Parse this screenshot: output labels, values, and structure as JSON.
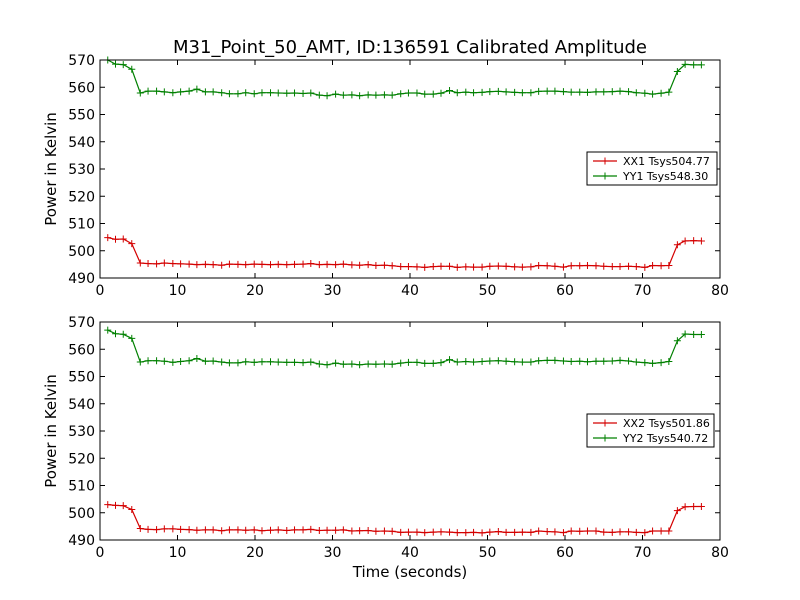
{
  "chart_data": {
    "type": "line",
    "title": "M31_Point_50_AMT, ID:136591 Calibrated Amplitude",
    "xlabel": "Time (seconds)",
    "ylabel": "Power in Kelvin",
    "xlim": [
      0,
      80
    ],
    "ylim": [
      490,
      570
    ],
    "x_ticks": [
      "0",
      "10",
      "20",
      "30",
      "40",
      "50",
      "60",
      "70",
      "80"
    ],
    "y_ticks": [
      "490",
      "500",
      "510",
      "520",
      "530",
      "540",
      "550",
      "560",
      "570"
    ],
    "grid": false,
    "legend_position": "center-right",
    "x": [
      1.0,
      2.0,
      3.0,
      4.1,
      5.2,
      6.2,
      7.3,
      8.3,
      9.4,
      10.4,
      11.5,
      12.5,
      13.6,
      14.6,
      15.7,
      16.7,
      17.8,
      18.8,
      19.9,
      20.9,
      22.0,
      23.0,
      24.1,
      25.1,
      26.2,
      27.2,
      28.3,
      29.3,
      30.4,
      31.4,
      32.5,
      33.5,
      34.6,
      35.6,
      36.7,
      37.7,
      38.8,
      39.8,
      40.9,
      41.9,
      43.0,
      44.0,
      45.1,
      46.1,
      47.2,
      48.2,
      49.3,
      50.3,
      51.4,
      52.4,
      53.5,
      54.5,
      55.6,
      56.6,
      57.7,
      58.7,
      59.8,
      60.8,
      61.9,
      62.9,
      64.0,
      65.0,
      66.1,
      67.1,
      68.2,
      69.2,
      70.3,
      71.3,
      72.4,
      73.4,
      74.5,
      75.5,
      76.6,
      77.6
    ],
    "panels": [
      {
        "series": [
          {
            "name": "XX1 Tsys504.77",
            "color": "#d40000",
            "values": [
              504.8,
              504.2,
              504.3,
              502.6,
              495.5,
              495.3,
              495.2,
              495.5,
              495.3,
              495.2,
              495.1,
              494.9,
              495.0,
              494.9,
              494.7,
              495.1,
              495.0,
              494.9,
              495.1,
              495.0,
              494.9,
              495.0,
              494.9,
              495.0,
              495.1,
              495.3,
              494.9,
              495.0,
              494.9,
              495.1,
              494.8,
              494.7,
              494.9,
              494.6,
              494.7,
              494.5,
              494.2,
              494.2,
              494.1,
              493.9,
              494.2,
              494.3,
              494.3,
              493.9,
              494.1,
              494.0,
              494.0,
              494.3,
              494.4,
              494.3,
              494.1,
              494.0,
              494.1,
              494.6,
              494.5,
              494.3,
              494.0,
              494.5,
              494.5,
              494.6,
              494.5,
              494.3,
              494.2,
              494.2,
              494.3,
              494.2,
              493.9,
              494.6,
              494.5,
              494.6,
              502.2,
              503.6,
              503.7,
              503.6
            ]
          },
          {
            "name": "YY1 Tsys548.30",
            "color": "#008000",
            "values": [
              570.0,
              568.5,
              568.3,
              566.6,
              557.9,
              558.6,
              558.6,
              558.3,
              558.0,
              558.3,
              558.6,
              559.3,
              558.3,
              558.3,
              558.0,
              557.6,
              557.6,
              558.0,
              557.6,
              558.0,
              558.0,
              557.9,
              557.8,
              557.9,
              557.7,
              557.9,
              557.1,
              556.9,
              557.5,
              557.1,
              557.2,
              556.9,
              557.2,
              557.1,
              557.2,
              557.1,
              557.6,
              557.9,
              557.9,
              557.5,
              557.5,
              557.8,
              558.8,
              558.0,
              558.2,
              558.0,
              558.1,
              558.4,
              558.5,
              558.3,
              558.1,
              558.0,
              558.0,
              558.5,
              558.6,
              558.6,
              558.4,
              558.2,
              558.2,
              558.1,
              558.3,
              558.3,
              558.4,
              558.6,
              558.4,
              558.0,
              557.8,
              557.5,
              557.8,
              558.2,
              565.8,
              568.4,
              568.2,
              568.2
            ]
          }
        ]
      },
      {
        "series": [
          {
            "name": "XX2 Tsys501.86",
            "color": "#d40000",
            "values": [
              503.0,
              502.7,
              502.6,
              501.2,
              494.2,
              493.9,
              493.8,
              494.1,
              494.1,
              493.9,
              493.8,
              493.6,
              493.7,
              493.7,
              493.4,
              493.7,
              493.7,
              493.6,
              493.7,
              493.4,
              493.6,
              493.7,
              493.5,
              493.7,
              493.7,
              493.9,
              493.5,
              493.6,
              493.6,
              493.7,
              493.3,
              493.4,
              493.5,
              493.2,
              493.3,
              493.2,
              492.8,
              492.9,
              492.9,
              492.7,
              492.9,
              493.0,
              492.9,
              492.7,
              492.7,
              492.8,
              492.6,
              492.9,
              493.1,
              492.8,
              492.8,
              492.9,
              492.8,
              493.3,
              493.1,
              493.0,
              492.7,
              493.3,
              493.2,
              493.3,
              493.3,
              492.9,
              492.8,
              493.0,
              493.0,
              492.8,
              492.7,
              493.3,
              493.3,
              493.3,
              500.8,
              502.2,
              502.3,
              502.3
            ]
          },
          {
            "name": "YY2 Tsys540.72",
            "color": "#008000",
            "values": [
              567.0,
              565.7,
              565.5,
              564.0,
              555.3,
              555.8,
              555.8,
              555.6,
              555.2,
              555.5,
              555.8,
              556.6,
              555.6,
              555.7,
              555.3,
              555.0,
              555.0,
              555.4,
              555.2,
              555.4,
              555.4,
              555.3,
              555.2,
              555.2,
              555.1,
              555.3,
              554.6,
              554.3,
              554.9,
              554.5,
              554.6,
              554.3,
              554.6,
              554.5,
              554.6,
              554.5,
              554.9,
              555.2,
              555.2,
              554.8,
              554.8,
              555.1,
              556.2,
              555.3,
              555.5,
              555.3,
              555.5,
              555.7,
              555.8,
              555.6,
              555.4,
              555.3,
              555.3,
              555.8,
              555.9,
              555.9,
              555.7,
              555.5,
              555.6,
              555.4,
              555.6,
              555.6,
              555.7,
              555.9,
              555.7,
              555.3,
              555.1,
              554.8,
              555.1,
              555.5,
              563.1,
              565.6,
              565.4,
              565.4
            ]
          }
        ]
      }
    ]
  }
}
